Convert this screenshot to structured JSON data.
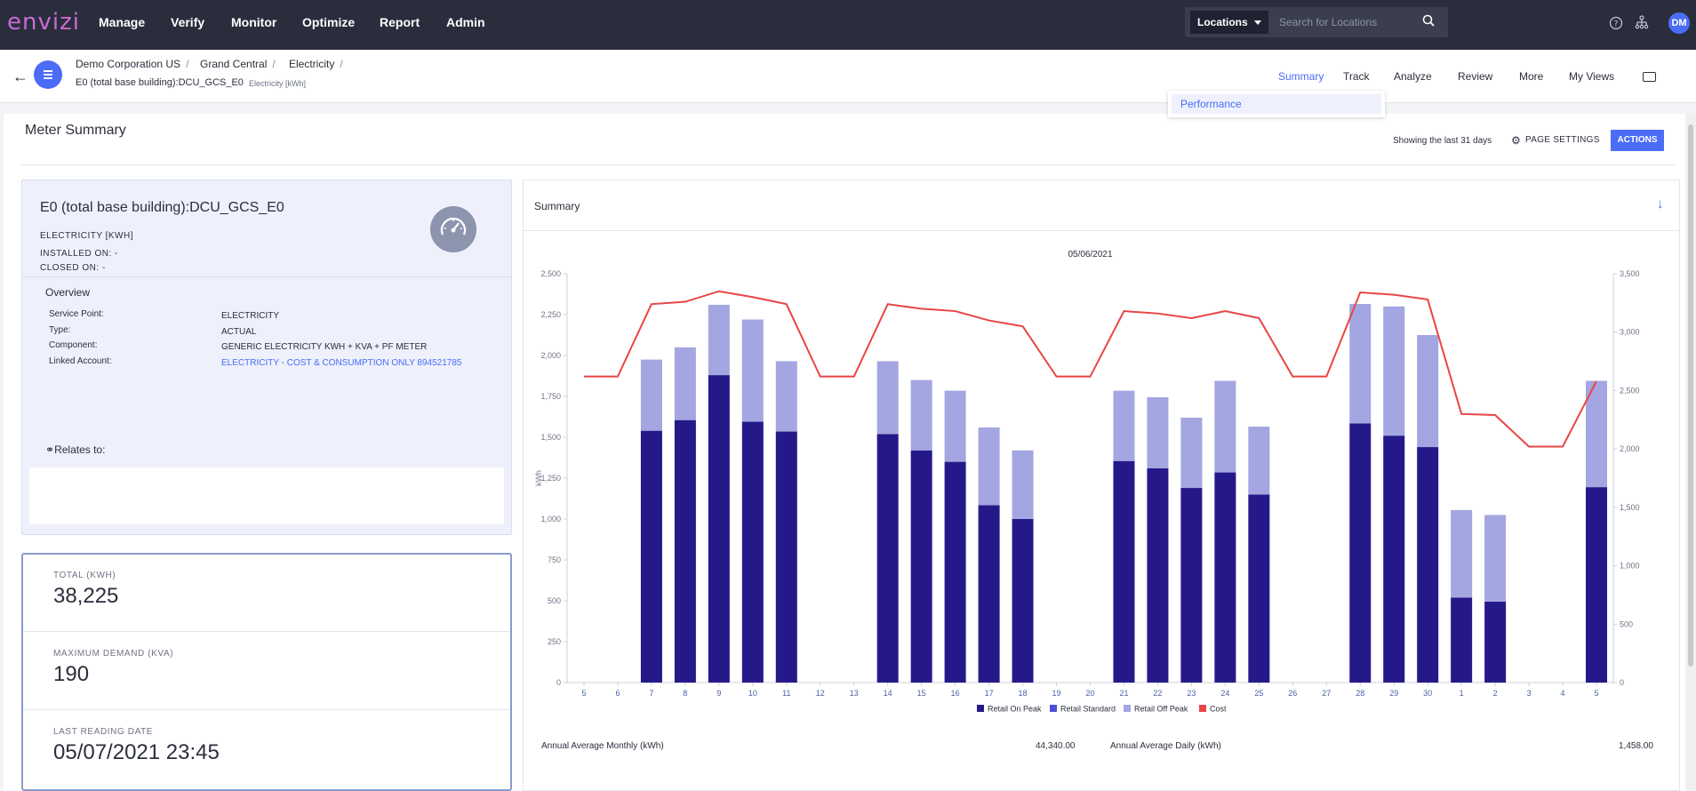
{
  "app": {
    "logo": "envizi",
    "nav": [
      "Manage",
      "Verify",
      "Monitor",
      "Optimize",
      "Report",
      "Admin"
    ],
    "locations_select": "Locations",
    "search_placeholder": "Search for Locations",
    "avatar_initials": "DM"
  },
  "breadcrumb": {
    "items": [
      "Demo Corporation US",
      "Grand Central",
      "Electricity"
    ],
    "meter_name": "E0 (total base building):DCU_GCS_E0",
    "meter_unit": "Electricity [kWh]"
  },
  "tabs": [
    "Summary",
    "Track",
    "Analyze",
    "Review",
    "More",
    "My Views"
  ],
  "dropdown": {
    "item": "Performance"
  },
  "page": {
    "title": "Meter Summary",
    "showing": "Showing the last 31 days",
    "page_settings": "PAGE SETTINGS",
    "actions": "ACTIONS"
  },
  "meter": {
    "title": "E0 (total base building):DCU_GCS_E0",
    "type_unit": "ELECTRICITY [KWH]",
    "installed_on": "INSTALLED ON: -",
    "closed_on": "CLOSED ON: -",
    "overview_title": "Overview",
    "overview": [
      {
        "label": "Service Point:",
        "value": "ELECTRICITY"
      },
      {
        "label": "Type:",
        "value": "ACTUAL"
      },
      {
        "label": "Component:",
        "value": "GENERIC ELECTRICITY KWH + KVA + PF METER"
      },
      {
        "label": "Linked Account:",
        "value": "ELECTRICITY - COST & CONSUMPTION ONLY 894521785"
      }
    ],
    "relates_to": "Relates to:"
  },
  "stats": {
    "total_label": "TOTAL (KWH)",
    "total_value": "38,225",
    "max_label": "MAXIMUM DEMAND (KVA)",
    "max_value": "190",
    "last_label": "LAST READING DATE",
    "last_value": "05/07/2021 23:45"
  },
  "summary": {
    "title": "Summary",
    "annual_monthly_label": "Annual Average Monthly (kWh)",
    "annual_monthly_value": "44,340.00",
    "annual_daily_label": "Annual Average Daily (kWh)",
    "annual_daily_value": "1,458.00"
  },
  "colors": {
    "on_peak": "#25198a",
    "standard": "#4a50d6",
    "off_peak": "#a3a6e0",
    "cost": "#e84545",
    "accent": "#4a6cf7"
  },
  "chart_data": {
    "type": "bar",
    "title": "05/06/2021",
    "ylabel": "kWh",
    "ylim": [
      0,
      2500
    ],
    "y2lim": [
      0,
      3500
    ],
    "y_ticks": [
      "0",
      "250",
      "500",
      "750",
      "1,000",
      "1,250",
      "1,500",
      "1,750",
      "2,000",
      "2,250",
      "2,500"
    ],
    "y2_ticks": [
      "0",
      "500",
      "1,000",
      "1,500",
      "2,000",
      "2,500",
      "3,000",
      "3,500"
    ],
    "categories": [
      "5",
      "6",
      "7",
      "8",
      "9",
      "10",
      "11",
      "12",
      "13",
      "14",
      "15",
      "16",
      "17",
      "18",
      "19",
      "20",
      "21",
      "22",
      "23",
      "24",
      "25",
      "26",
      "27",
      "28",
      "29",
      "30",
      "1",
      "2",
      "3",
      "4",
      "5"
    ],
    "legend": [
      "Retail On Peak",
      "Retail Standard",
      "Retail Off Peak",
      "Cost"
    ],
    "series": [
      {
        "name": "Retail On Peak",
        "values": [
          0,
          0,
          1540,
          1605,
          1880,
          1595,
          1535,
          0,
          0,
          1520,
          1420,
          1350,
          1085,
          1000,
          0,
          0,
          1355,
          1310,
          1190,
          1285,
          1150,
          0,
          0,
          1585,
          1510,
          1440,
          520,
          495,
          0,
          0,
          1195
        ]
      },
      {
        "name": "Retail Standard",
        "values": [
          0,
          0,
          0,
          0,
          0,
          0,
          0,
          0,
          0,
          0,
          0,
          0,
          0,
          0,
          0,
          0,
          0,
          0,
          0,
          0,
          0,
          0,
          0,
          0,
          0,
          0,
          0,
          0,
          0,
          0,
          0
        ]
      },
      {
        "name": "Retail Off Peak",
        "values": [
          0,
          0,
          435,
          445,
          430,
          625,
          430,
          0,
          0,
          445,
          430,
          435,
          475,
          420,
          0,
          0,
          430,
          435,
          430,
          560,
          415,
          0,
          0,
          730,
          790,
          685,
          535,
          530,
          0,
          0,
          650
        ]
      },
      {
        "name": "Cost",
        "axis": "right",
        "values": [
          2620,
          2620,
          3240,
          3260,
          3350,
          3300,
          3240,
          2620,
          2620,
          3240,
          3200,
          3180,
          3100,
          3050,
          2620,
          2620,
          3180,
          3160,
          3120,
          3180,
          3120,
          2620,
          2620,
          3340,
          3320,
          3280,
          2300,
          2290,
          2020,
          2020,
          2580
        ]
      }
    ]
  }
}
